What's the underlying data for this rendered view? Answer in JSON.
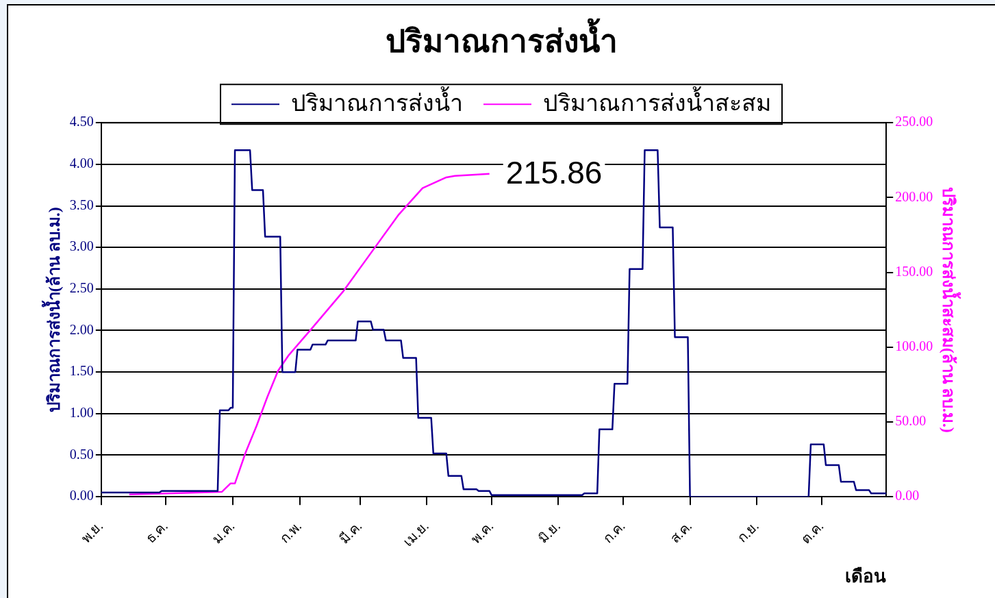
{
  "chart_data": {
    "type": "line",
    "title": "ปริมาณการส่งน้ำ",
    "xlabel": "เดือน",
    "ylabel": "ปริมาณการส่งน้ำ(ล้าน ลบ.ม.)",
    "y2label": "ปริมาณการส่งน้ำสะสม(ล้าน ลบ.ม.)",
    "categories": [
      "พ.ย.",
      null,
      null,
      null,
      null,
      null,
      null,
      null,
      null,
      null,
      null,
      null,
      null,
      null,
      null,
      null,
      null,
      null,
      null,
      null,
      null,
      null,
      null,
      null,
      null,
      null,
      null,
      null,
      null,
      null,
      "ธ.ค.",
      null,
      null,
      null,
      null,
      null,
      null,
      null,
      null,
      null,
      null,
      null,
      null,
      null,
      null,
      null,
      null,
      null,
      null,
      null,
      null,
      null,
      null,
      null,
      null,
      null,
      null,
      null,
      null,
      null,
      null,
      "ม.ค.",
      null,
      null,
      null,
      null,
      null,
      null,
      null,
      null,
      null,
      null,
      null,
      null,
      null,
      null,
      null,
      null,
      null,
      null,
      null,
      null,
      null,
      null,
      null,
      null,
      null,
      null,
      null,
      null,
      null,
      null,
      "ก.พ.",
      null,
      null,
      null,
      null,
      null,
      null,
      null,
      null,
      null,
      null,
      null,
      null,
      null,
      null,
      null,
      null,
      null,
      null,
      null,
      null,
      null,
      null,
      null,
      null,
      null,
      null,
      null,
      "มี.ค.",
      null,
      null,
      null,
      null,
      null,
      null,
      null,
      null,
      null,
      null,
      null,
      null,
      null,
      null,
      null,
      null,
      null,
      null,
      null,
      null,
      null,
      null,
      null,
      null,
      null,
      null,
      null,
      null,
      null,
      null,
      "เม.ย.",
      null,
      null,
      null,
      null,
      null,
      null,
      null,
      null,
      null,
      null,
      null,
      null,
      null,
      null,
      null,
      null,
      null,
      null,
      null,
      null,
      null,
      null,
      null,
      null,
      null,
      null,
      null,
      null,
      null,
      "พ.ค.",
      null,
      null,
      null,
      null,
      null,
      null,
      null,
      null,
      null,
      null,
      null,
      null,
      null,
      null,
      null,
      null,
      null,
      null,
      null,
      null,
      null,
      null,
      null,
      null,
      null,
      null,
      null,
      null,
      null,
      null,
      "มิ.ย.",
      null,
      null,
      null,
      null,
      null,
      null,
      null,
      null,
      null,
      null,
      null,
      null,
      null,
      null,
      null,
      null,
      null,
      null,
      null,
      null,
      null,
      null,
      null,
      null,
      null,
      null,
      null,
      null,
      null,
      "ก.ค.",
      null,
      null,
      null,
      null,
      null,
      null,
      null,
      null,
      null,
      null,
      null,
      null,
      null,
      null,
      null,
      null,
      null,
      null,
      null,
      null,
      null,
      null,
      null,
      null,
      null,
      null,
      null,
      null,
      null,
      null,
      "ส.ค.",
      null,
      null,
      null,
      null,
      null,
      null,
      null,
      null,
      null,
      null,
      null,
      null,
      null,
      null,
      null,
      null,
      null,
      null,
      null,
      null,
      null,
      null,
      null,
      null,
      null,
      null,
      null,
      null,
      null,
      null,
      "ก.ย.",
      null,
      null,
      null,
      null,
      null,
      null,
      null,
      null,
      null,
      null,
      null,
      null,
      null,
      null,
      null,
      null,
      null,
      null,
      null,
      null,
      null,
      null,
      null,
      null,
      null,
      null,
      null,
      null,
      null,
      "ต.ค.",
      null,
      null,
      null,
      null,
      null,
      null,
      null,
      null,
      null,
      null,
      null,
      null,
      null,
      null,
      null,
      null,
      null,
      null,
      null,
      null,
      null,
      null,
      null,
      null,
      null,
      null,
      null,
      null,
      null,
      null
    ],
    "ylim": [
      0,
      4.5
    ],
    "yticks": [
      {
        "value": 0,
        "label": "0.00"
      },
      {
        "value": 0.5,
        "label": "0.50"
      },
      {
        "value": 1,
        "label": "1.00"
      },
      {
        "value": 1.5,
        "label": "1.50"
      },
      {
        "value": 2,
        "label": "2.00"
      },
      {
        "value": 2.5,
        "label": "2.50"
      },
      {
        "value": 3,
        "label": "3.00"
      },
      {
        "value": 3.5,
        "label": "3.50"
      },
      {
        "value": 4,
        "label": "4.00"
      },
      {
        "value": 4.5,
        "label": "4.50"
      }
    ],
    "y2lim": [
      0,
      250
    ],
    "y2ticks": [
      {
        "value": 0,
        "label": "0.00"
      },
      {
        "value": 50,
        "label": "50.00"
      },
      {
        "value": 100,
        "label": "100.00"
      },
      {
        "value": 150,
        "label": "150.00"
      },
      {
        "value": 200,
        "label": "200.00"
      },
      {
        "value": 250,
        "label": "250.00"
      }
    ],
    "grid": "y",
    "legend": "top",
    "marker": "none",
    "series": [
      {
        "name": "ปริมาณการส่งน้ำ",
        "color": "#000080",
        "values": [
          0.05,
          0.05,
          0.05,
          0.05,
          0.05,
          0.05,
          0.05,
          0.05,
          0.05,
          0.05,
          0.05,
          0.05,
          0.05,
          0.05,
          0.05,
          0.05,
          0.05,
          0.05,
          0.05,
          0.05,
          0.05,
          0.05,
          0.05,
          0.05,
          0.05,
          0.05,
          0.05,
          0.05,
          0.07,
          0.07,
          0.07,
          0.07,
          0.07,
          0.07,
          0.07,
          0.07,
          0.07,
          0.07,
          0.07,
          0.07,
          0.07,
          0.07,
          0.07,
          0.07,
          0.07,
          0.07,
          0.07,
          0.07,
          0.07,
          0.07,
          0.07,
          0.07,
          0.07,
          0.07,
          0.07,
          1.04,
          1.04,
          1.04,
          1.04,
          1.04,
          1.07,
          1.07,
          4.17,
          4.17,
          4.17,
          4.17,
          4.17,
          4.17,
          4.17,
          4.17,
          3.69,
          3.69,
          3.69,
          3.69,
          3.69,
          3.69,
          3.13,
          3.13,
          3.13,
          3.13,
          3.13,
          3.13,
          3.13,
          3.13,
          1.5,
          1.5,
          1.5,
          1.5,
          1.5,
          1.5,
          1.5,
          1.77,
          1.77,
          1.77,
          1.77,
          1.77,
          1.77,
          1.77,
          1.83,
          1.83,
          1.83,
          1.83,
          1.83,
          1.83,
          1.83,
          1.88,
          1.88,
          1.88,
          1.88,
          1.88,
          1.88,
          1.88,
          1.88,
          1.88,
          1.88,
          1.88,
          1.88,
          1.88,
          1.88,
          2.11,
          2.11,
          2.11,
          2.11,
          2.11,
          2.11,
          2.11,
          2.01,
          2.01,
          2.01,
          2.01,
          2.01,
          2.01,
          1.88,
          1.88,
          1.88,
          1.88,
          1.88,
          1.88,
          1.88,
          1.88,
          1.67,
          1.67,
          1.67,
          1.67,
          1.67,
          1.67,
          1.67,
          0.95,
          0.95,
          0.95,
          0.95,
          0.95,
          0.95,
          0.95,
          0.52,
          0.52,
          0.52,
          0.52,
          0.52,
          0.52,
          0.52,
          0.25,
          0.25,
          0.25,
          0.25,
          0.25,
          0.25,
          0.25,
          0.09,
          0.09,
          0.09,
          0.09,
          0.09,
          0.09,
          0.09,
          0.07,
          0.07,
          0.07,
          0.07,
          0.07,
          0.07,
          0.02,
          0.02,
          0.02,
          0.02,
          0.02,
          0.02,
          0.02,
          0.02,
          0.02,
          0.02,
          0.02,
          0.02,
          0.02,
          0.02,
          0.02,
          0.02,
          0.02,
          0.02,
          0.02,
          0.02,
          0.02,
          0.02,
          0.02,
          0.02,
          0.02,
          0.02,
          0.02,
          0.02,
          0.02,
          0.02,
          0.02,
          0.02,
          0.02,
          0.02,
          0.02,
          0.02,
          0.02,
          0.02,
          0.02,
          0.02,
          0.02,
          0.02,
          0.02,
          0.04,
          0.04,
          0.04,
          0.04,
          0.04,
          0.04,
          0.04,
          0.81,
          0.81,
          0.81,
          0.81,
          0.81,
          0.81,
          0.81,
          1.36,
          1.36,
          1.36,
          1.36,
          1.36,
          1.36,
          1.36,
          2.74,
          2.74,
          2.74,
          2.74,
          2.74,
          2.74,
          2.74,
          4.17,
          4.17,
          4.17,
          4.17,
          4.17,
          4.17,
          4.17,
          3.24,
          3.24,
          3.24,
          3.24,
          3.24,
          3.24,
          3.24,
          1.92,
          1.92,
          1.92,
          1.92,
          1.92,
          1.92,
          1.92,
          0,
          0,
          0,
          0,
          0,
          0,
          0,
          0,
          0,
          0,
          0,
          0,
          0,
          0,
          0,
          0,
          0,
          0,
          0,
          0,
          0,
          0,
          0,
          0,
          0,
          0,
          0,
          0,
          0,
          0,
          0,
          0,
          0,
          0,
          0,
          0,
          0,
          0,
          0,
          0,
          0,
          0,
          0,
          0,
          0,
          0,
          0,
          0,
          0,
          0,
          0,
          0,
          0,
          0,
          0,
          0,
          0.63,
          0.63,
          0.63,
          0.63,
          0.63,
          0.63,
          0.63,
          0.38,
          0.38,
          0.38,
          0.38,
          0.38,
          0.38,
          0.38,
          0.18,
          0.18,
          0.18,
          0.18,
          0.18,
          0.18,
          0.18,
          0.08,
          0.08,
          0.08,
          0.08,
          0.08,
          0.08,
          0.08,
          0.04,
          0.04,
          0.04,
          0.04,
          0.04,
          0.04,
          0.04,
          0.04
        ]
      },
      {
        "name": "ปริมาณการส่งน้ำสะสม",
        "color": "#ff00ff",
        "axis": "y2",
        "values": [
          null,
          null,
          null,
          null,
          null,
          null,
          null,
          null,
          null,
          null,
          null,
          null,
          null,
          1.5,
          null,
          null,
          null,
          null,
          null,
          null,
          null,
          null,
          null,
          null,
          null,
          null,
          null,
          null,
          null,
          null,
          null,
          null,
          null,
          null,
          null,
          null,
          null,
          2.5,
          null,
          null,
          null,
          null,
          null,
          null,
          null,
          null,
          null,
          null,
          null,
          null,
          null,
          null,
          null,
          null,
          null,
          null,
          3.3,
          null,
          null,
          null,
          8.9,
          null,
          8.9,
          null,
          null,
          null,
          null,
          29.7,
          null,
          null,
          null,
          null,
          47.2,
          null,
          null,
          null,
          null,
          66.6,
          null,
          null,
          null,
          null,
          84.2,
          null,
          null,
          null,
          null,
          94.7,
          null,
          null,
          null,
          null,
          null,
          null,
          null,
          null,
          null,
          111.4,
          null,
          null,
          null,
          null,
          null,
          null,
          null,
          null,
          null,
          null,
          null,
          null,
          null,
          null,
          136.9,
          null,
          null,
          null,
          null,
          null,
          null,
          null,
          null,
          null,
          null,
          null,
          null,
          null,
          null,
          166.8,
          null,
          null,
          null,
          null,
          null,
          null,
          null,
          null,
          null,
          null,
          188.7,
          null,
          null,
          null,
          null,
          null,
          null,
          null,
          null,
          null,
          null,
          206.3,
          null,
          null,
          null,
          null,
          null,
          null,
          null,
          null,
          null,
          null,
          213.5,
          null,
          null,
          null,
          214.5,
          null,
          null,
          null,
          null,
          null,
          null,
          null,
          null,
          null,
          null,
          null,
          null,
          null,
          null,
          null,
          215.86,
          null,
          null,
          null,
          null,
          null,
          null,
          null,
          null,
          null,
          null,
          null,
          null,
          null,
          null,
          null,
          null,
          null,
          null,
          null,
          null,
          null,
          null,
          null,
          null,
          null,
          null,
          null,
          null,
          null,
          null,
          null,
          null,
          null,
          null,
          null,
          null,
          null,
          null,
          null,
          null,
          null,
          null,
          null,
          null,
          null,
          null,
          null,
          null,
          null,
          null,
          null,
          null,
          null,
          null,
          null,
          null,
          null,
          null,
          null,
          null,
          null,
          null,
          null,
          null,
          null,
          null,
          null,
          null,
          null,
          null,
          null,
          null,
          null,
          null,
          null,
          null,
          null,
          null,
          null,
          null,
          null,
          null,
          null,
          null,
          null,
          null,
          null,
          null,
          null,
          null,
          null,
          null,
          null,
          null,
          null,
          null,
          null,
          null,
          null,
          null,
          null,
          null,
          null,
          null,
          null,
          null,
          null,
          null,
          null,
          null,
          null,
          null,
          null,
          null,
          null,
          null,
          null,
          null,
          null,
          null,
          null,
          null,
          null,
          null,
          null,
          null,
          null,
          null,
          null,
          null,
          null,
          null,
          null,
          null,
          null,
          null,
          null,
          null,
          null,
          null,
          null,
          null,
          null,
          null,
          null,
          null,
          null,
          null,
          null,
          null,
          null,
          null,
          null,
          null,
          null,
          null,
          null,
          null,
          null,
          null,
          null,
          null,
          null,
          null,
          null,
          null,
          null,
          null,
          null,
          null,
          null,
          null,
          null,
          null,
          null,
          null,
          null,
          null,
          null,
          null,
          null,
          null,
          null,
          null
        ],
        "value_labels": [
          null,
          null,
          null,
          null,
          null,
          null,
          null,
          null,
          null,
          null,
          null,
          null,
          null,
          null,
          null,
          null,
          null,
          null,
          null,
          null,
          null,
          null,
          null,
          null,
          null,
          null,
          null,
          null,
          null,
          null,
          null,
          null,
          null,
          null,
          null,
          null,
          null,
          null,
          null,
          null,
          null,
          null,
          null,
          null,
          null,
          null,
          null,
          null,
          null,
          null,
          null,
          null,
          null,
          null,
          null,
          null,
          null,
          null,
          null,
          null,
          null,
          null,
          null,
          null,
          null,
          null,
          null,
          null,
          null,
          null,
          null,
          null,
          null,
          null,
          null,
          null,
          null,
          null,
          null,
          null,
          null,
          null,
          null,
          null,
          null,
          null,
          null,
          null,
          null,
          null,
          null,
          null,
          null,
          null,
          null,
          null,
          null,
          null,
          null,
          null,
          null,
          null,
          null,
          null,
          null,
          null,
          null,
          null,
          null,
          null,
          null,
          null,
          null,
          null,
          null,
          null,
          null,
          null,
          null,
          null,
          null,
          null,
          null,
          null,
          null,
          null,
          null,
          null,
          null,
          null,
          null,
          null,
          null,
          null,
          null,
          null,
          null,
          null,
          null,
          null,
          null,
          null,
          null,
          null,
          null,
          null,
          null,
          null,
          null,
          null,
          null,
          null,
          null,
          null,
          null,
          null,
          null,
          null,
          null,
          null,
          null,
          null,
          null,
          null,
          null,
          null,
          null,
          null,
          null,
          null,
          null,
          null,
          null,
          null,
          null,
          null,
          null,
          null,
          null,
          null,
          "215.86",
          null,
          null,
          null,
          null,
          null,
          null,
          null,
          null,
          null,
          null,
          null,
          null,
          null,
          null,
          null,
          null,
          null,
          null,
          null,
          null,
          null,
          null,
          null,
          null,
          null,
          null,
          null,
          null,
          null,
          null,
          null,
          null,
          null,
          null,
          null,
          null,
          null,
          null,
          null,
          null,
          null,
          null,
          null,
          null,
          null,
          null,
          null,
          null,
          null,
          null,
          null,
          null,
          null,
          null,
          null,
          null,
          null,
          null,
          null,
          null,
          null,
          null,
          null,
          null,
          null,
          null,
          null,
          null,
          null,
          null,
          null,
          null,
          null,
          null,
          null,
          null,
          null,
          null,
          null,
          null,
          null,
          null,
          null,
          null,
          null,
          null,
          null,
          null,
          null,
          null,
          null,
          null,
          null,
          null,
          null,
          null,
          null,
          null,
          null,
          null,
          null,
          null,
          null,
          null,
          null,
          null,
          null,
          null,
          null,
          null,
          null,
          null,
          null,
          null,
          null,
          null,
          null,
          null,
          null,
          null,
          null,
          null,
          null,
          null,
          null,
          null,
          null,
          null,
          null,
          null,
          null,
          null,
          null,
          null,
          null,
          null,
          null,
          null,
          null,
          null,
          null,
          null,
          null,
          null,
          null,
          null,
          null,
          null,
          null,
          null,
          null,
          null,
          null,
          null,
          null,
          null,
          null,
          null,
          null,
          null,
          null,
          null,
          null,
          null,
          null,
          null,
          null,
          null,
          null,
          null,
          null,
          null,
          null,
          null,
          null,
          null,
          null,
          null,
          null,
          null,
          null,
          null,
          null,
          null
        ]
      }
    ]
  }
}
